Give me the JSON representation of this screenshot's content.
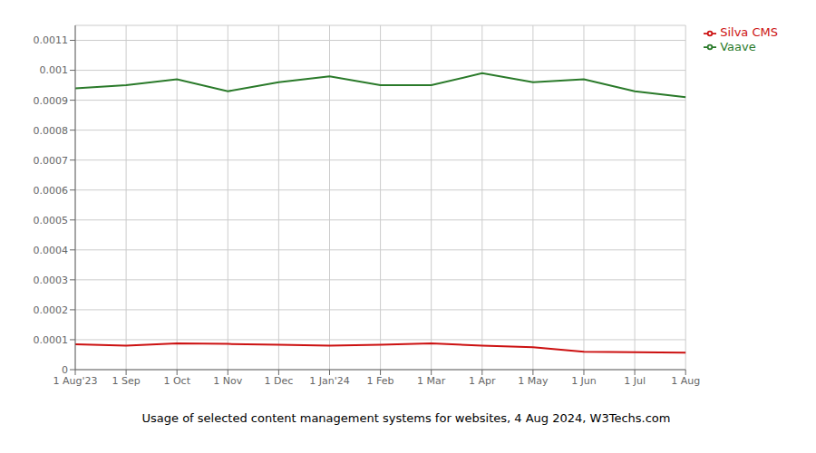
{
  "chart_data": {
    "type": "line",
    "title": "Usage of selected content management systems for websites, 4 Aug 2024, W3Techs.com",
    "categories": [
      "1 Aug'23",
      "1 Sep",
      "1 Oct",
      "1 Nov",
      "1 Dec",
      "1 Jan'24",
      "1 Feb",
      "1 Mar",
      "1 Apr",
      "1 May",
      "1 Jun",
      "1 Jul",
      "1 Aug"
    ],
    "series": [
      {
        "name": "Vaave",
        "color": "#2a7a2a",
        "values": [
          0.00094,
          0.00095,
          0.00097,
          0.00093,
          0.00096,
          0.00098,
          0.00095,
          0.00095,
          0.00099,
          0.00096,
          0.00097,
          0.00093,
          0.00091
        ]
      },
      {
        "name": "Silva CMS",
        "color": "#cc1111",
        "values": [
          8.5e-05,
          8e-05,
          8.8e-05,
          8.6e-05,
          8.3e-05,
          8e-05,
          8.3e-05,
          8.8e-05,
          8e-05,
          7.5e-05,
          6e-05,
          5.8e-05,
          5.7e-05
        ]
      }
    ],
    "ylim": [
      0,
      0.00115
    ],
    "yticks": [
      0,
      0.0001,
      0.0002,
      0.0003,
      0.0004,
      0.0005,
      0.0006,
      0.0007,
      0.0008,
      0.0009,
      0.001,
      0.0011
    ],
    "grid": true,
    "legend": "right"
  }
}
